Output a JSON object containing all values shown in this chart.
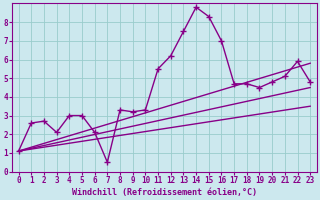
{
  "xlabel": "Windchill (Refroidissement éolien,°C)",
  "ylabel": "",
  "background_color": "#cce8ee",
  "line_color": "#880088",
  "grid_color": "#99cccc",
  "xlim": [
    -0.5,
    23.5
  ],
  "ylim": [
    0,
    9
  ],
  "xticks": [
    0,
    1,
    2,
    3,
    4,
    5,
    6,
    7,
    8,
    9,
    10,
    11,
    12,
    13,
    14,
    15,
    16,
    17,
    18,
    19,
    20,
    21,
    22,
    23
  ],
  "yticks": [
    0,
    1,
    2,
    3,
    4,
    5,
    6,
    7,
    8
  ],
  "lines": [
    {
      "x": [
        0,
        1,
        2,
        3,
        4,
        5,
        6,
        7,
        8,
        9,
        10,
        11,
        12,
        13,
        14,
        15,
        16,
        17,
        18,
        19,
        20,
        21,
        22,
        23
      ],
      "y": [
        1.1,
        2.6,
        2.7,
        2.1,
        3.0,
        3.0,
        2.1,
        0.5,
        3.3,
        3.2,
        3.3,
        5.5,
        6.2,
        7.5,
        8.8,
        8.3,
        7.0,
        4.7,
        4.7,
        4.5,
        4.8,
        5.1,
        5.9,
        4.8
      ]
    },
    {
      "x": [
        0,
        23
      ],
      "y": [
        1.1,
        3.5
      ]
    },
    {
      "x": [
        0,
        23
      ],
      "y": [
        1.1,
        4.5
      ]
    },
    {
      "x": [
        0,
        23
      ],
      "y": [
        1.1,
        5.8
      ]
    }
  ],
  "marker": "+",
  "markersize": 5,
  "linewidth": 1.0
}
